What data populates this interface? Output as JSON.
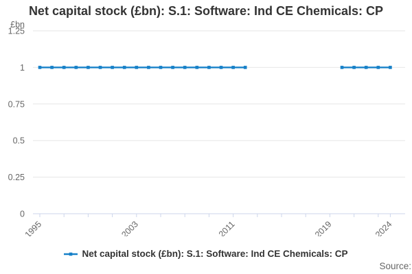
{
  "title": "Net capital stock (£bn): S.1: Software: Ind CE Chemicals: CP",
  "source_label": "Source:",
  "legend": {
    "label": "Net capital stock (£bn): S.1: Software: Ind CE Chemicals: CP"
  },
  "colors": {
    "series": "#1680c8",
    "grid": "#e6e6e6",
    "axis": "#ccd6eb",
    "axis_label": "#666666",
    "title": "#333333"
  },
  "chart_data": {
    "type": "line",
    "title": "Net capital stock (£bn): S.1: Software: Ind CE Chemicals: CP",
    "xlabel": "",
    "ylabel": "£bn",
    "ylim": [
      0,
      1.25
    ],
    "yticks": [
      0,
      0.25,
      0.5,
      0.75,
      1,
      1.25
    ],
    "ytick_labels": [
      "0",
      "0.25",
      "0.5",
      "0.75",
      "1",
      "1.25"
    ],
    "x_range_years": [
      1995,
      2024
    ],
    "x_tick_years": [
      1995,
      1997,
      1999,
      2001,
      2003,
      2005,
      2007,
      2009,
      2011,
      2013,
      2015,
      2017,
      2019,
      2021,
      2023,
      2024
    ],
    "x_labeled_years": [
      1995,
      2003,
      2011,
      2019,
      2024
    ],
    "grid": true,
    "legend_position": "bottom-center",
    "series": [
      {
        "name": "Net capital stock (£bn): S.1: Software: Ind CE Chemicals: CP",
        "color": "#1680c8",
        "marker": "square",
        "points": [
          [
            1995,
            1
          ],
          [
            1996,
            1
          ],
          [
            1997,
            1
          ],
          [
            1998,
            1
          ],
          [
            1999,
            1
          ],
          [
            2000,
            1
          ],
          [
            2001,
            1
          ],
          [
            2002,
            1
          ],
          [
            2003,
            1
          ],
          [
            2004,
            1
          ],
          [
            2005,
            1
          ],
          [
            2006,
            1
          ],
          [
            2007,
            1
          ],
          [
            2008,
            1
          ],
          [
            2009,
            1
          ],
          [
            2010,
            1
          ],
          [
            2011,
            1
          ],
          [
            2012,
            1
          ],
          [
            2013,
            null
          ],
          [
            2014,
            null
          ],
          [
            2015,
            null
          ],
          [
            2016,
            null
          ],
          [
            2017,
            null
          ],
          [
            2018,
            null
          ],
          [
            2019,
            null
          ],
          [
            2020,
            1
          ],
          [
            2021,
            1
          ],
          [
            2022,
            1
          ],
          [
            2023,
            1
          ],
          [
            2024,
            1
          ]
        ]
      }
    ]
  }
}
